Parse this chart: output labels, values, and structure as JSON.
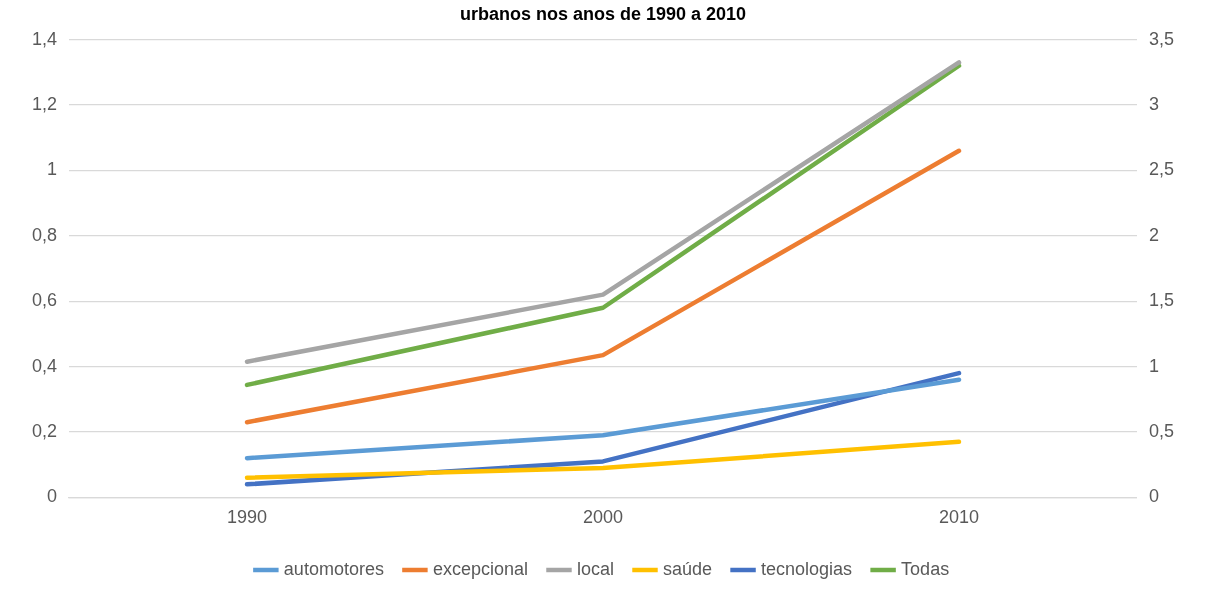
{
  "chart_data": {
    "type": "line",
    "title": "urbanos nos anos de 1990 a 2010",
    "categories": [
      "1990",
      "2000",
      "2010"
    ],
    "series": [
      {
        "name": "automotores",
        "color": "#5b9bd5",
        "values": [
          0.12,
          0.19,
          0.36
        ]
      },
      {
        "name": "excepcional",
        "color": "#ed7d31",
        "values": [
          0.23,
          0.435,
          1.06
        ]
      },
      {
        "name": "local",
        "color": "#a5a5a5",
        "values": [
          0.415,
          0.62,
          1.33
        ]
      },
      {
        "name": "saúde",
        "color": "#ffc000",
        "values": [
          0.06,
          0.09,
          0.17
        ]
      },
      {
        "name": "tecnologias",
        "color": "#4472c4",
        "values": [
          0.04,
          0.11,
          0.38
        ]
      },
      {
        "name": "Todas",
        "color": "#70ad47",
        "axis": "y2",
        "values": [
          0.86,
          1.45,
          3.3
        ]
      }
    ],
    "ylim": [
      0,
      1.4
    ],
    "yticks": [
      0,
      {
        "value": 0.2,
        "label": "0,2"
      },
      {
        "value": 0.4,
        "label": "0,4"
      },
      {
        "value": 0.6,
        "label": "0,6"
      },
      {
        "value": 0.8,
        "label": "0,8"
      },
      1,
      {
        "value": 1.2,
        "label": "1,2"
      },
      {
        "value": 1.4,
        "label": "1,4"
      }
    ],
    "y2lim": [
      0,
      3.5
    ],
    "y2ticks": [
      0,
      {
        "value": 0.5,
        "label": "0,5"
      },
      1,
      {
        "value": 1.5,
        "label": "1,5"
      },
      2,
      {
        "value": 2.5,
        "label": "2,5"
      },
      3,
      {
        "value": 3.5,
        "label": "3,5"
      }
    ],
    "grid": "y",
    "legend": "bottom",
    "marker": "none",
    "line_style": "solid"
  }
}
